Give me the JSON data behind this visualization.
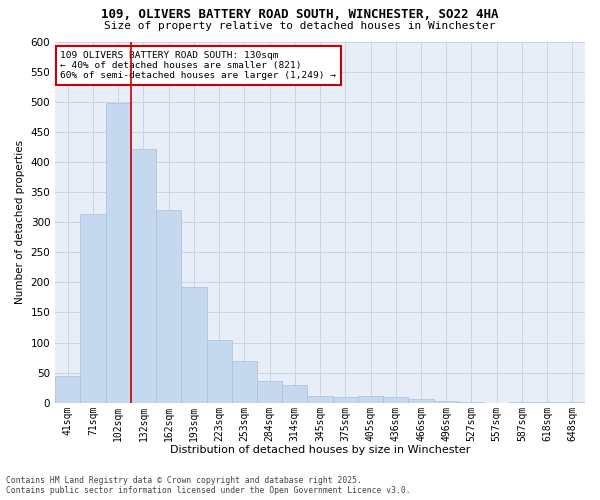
{
  "title_line1": "109, OLIVERS BATTERY ROAD SOUTH, WINCHESTER, SO22 4HA",
  "title_line2": "Size of property relative to detached houses in Winchester",
  "xlabel": "Distribution of detached houses by size in Winchester",
  "ylabel": "Number of detached properties",
  "categories": [
    "41sqm",
    "71sqm",
    "102sqm",
    "132sqm",
    "162sqm",
    "193sqm",
    "223sqm",
    "253sqm",
    "284sqm",
    "314sqm",
    "345sqm",
    "375sqm",
    "405sqm",
    "436sqm",
    "466sqm",
    "496sqm",
    "527sqm",
    "557sqm",
    "587sqm",
    "618sqm",
    "648sqm"
  ],
  "values": [
    45,
    313,
    498,
    422,
    320,
    193,
    105,
    70,
    37,
    30,
    12,
    10,
    11,
    10,
    7,
    3,
    1,
    0,
    1,
    1,
    2
  ],
  "bar_color": "#c5d8ed",
  "bar_edge_color": "#aac0d8",
  "vline_x_index": 2,
  "vline_color": "#cc0000",
  "legend_text_line1": "109 OLIVERS BATTERY ROAD SOUTH: 130sqm",
  "legend_text_line2": "← 40% of detached houses are smaller (821)",
  "legend_text_line3": "60% of semi-detached houses are larger (1,249) →",
  "legend_box_color": "#cc0000",
  "ylim": [
    0,
    600
  ],
  "yticks": [
    0,
    50,
    100,
    150,
    200,
    250,
    300,
    350,
    400,
    450,
    500,
    550,
    600
  ],
  "grid_color": "#c8d4e8",
  "bg_color": "#e8eef8",
  "footnote_line1": "Contains HM Land Registry data © Crown copyright and database right 2025.",
  "footnote_line2": "Contains public sector information licensed under the Open Government Licence v3.0."
}
